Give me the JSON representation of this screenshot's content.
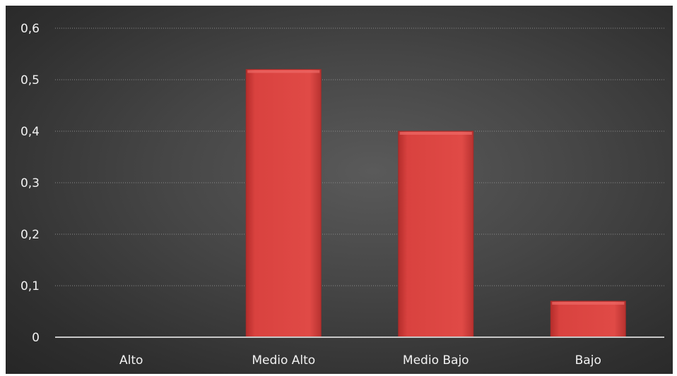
{
  "chart_data": {
    "type": "bar",
    "categories": [
      "Alto",
      "Medio Alto",
      "Medio Bajo",
      "Bajo"
    ],
    "values": [
      0,
      0.52,
      0.4,
      0.07
    ],
    "ylim": [
      0,
      0.6
    ],
    "yticks": [
      "0",
      "0,1",
      "0,2",
      "0,3",
      "0,4",
      "0,5",
      "0,6"
    ],
    "grid": true,
    "bar_color": "#d9423f",
    "background_color": "#3f3f3f"
  }
}
